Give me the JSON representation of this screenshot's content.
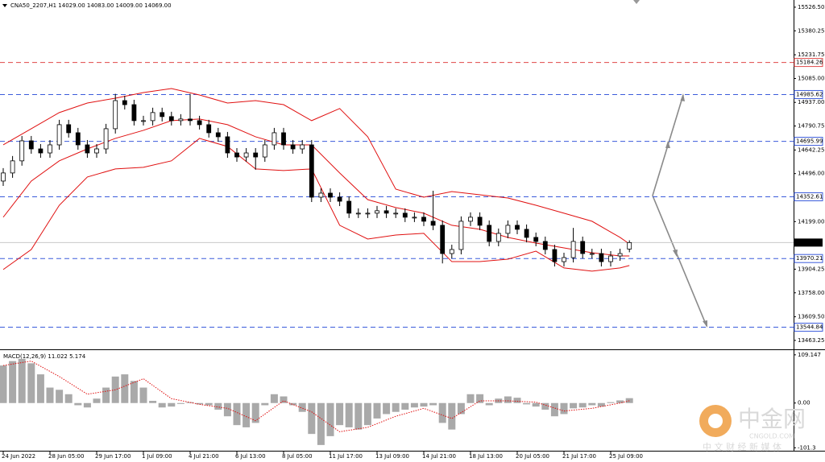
{
  "chart_data": {
    "type": "candlestick",
    "title": "CNA50_2207,H1  14029.00 14083.00 14009.00 14069.00",
    "categories": [
      "24 Jun 2022",
      null,
      null,
      null,
      null,
      "28 Jun 05:00",
      null,
      null,
      null,
      null,
      "29 Jun 17:00",
      null,
      null,
      null,
      null,
      "1 Jul 09:00",
      null,
      null,
      null,
      null,
      "4 Jul 21:00",
      null,
      null,
      null,
      null,
      "6 Jul 13:00",
      null,
      null,
      null,
      null,
      "8 Jul 05:00",
      null,
      null,
      null,
      null,
      "11 Jul 17:00",
      null,
      null,
      null,
      null,
      "13 Jul 09:00",
      null,
      null,
      null,
      null,
      "14 Jul 21:00",
      null,
      null,
      null,
      null,
      "18 Jul 13:00",
      null,
      null,
      null,
      null,
      "20 Jul 05:00",
      null,
      null,
      null,
      null,
      "21 Jul 17:00",
      null,
      null,
      null,
      null,
      "25 Jul 09:00",
      null,
      null
    ],
    "open": [
      14450,
      14500,
      14575,
      14699,
      14649,
      14624,
      14674,
      14799,
      14749,
      14674,
      14624,
      14649,
      14774,
      14948,
      14923,
      14824,
      14824,
      14874,
      14849,
      14824,
      14834,
      14824,
      14799,
      14749,
      14724,
      14624,
      14599,
      14624,
      14599,
      14674,
      14749,
      14674,
      14649,
      14674,
      14350,
      14375,
      14350,
      14325,
      14251,
      14251,
      14251,
      14266,
      14251,
      14251,
      14226,
      14226,
      14201,
      14176,
      14001,
      14026,
      14201,
      14226,
      14176,
      14076,
      14126,
      14176,
      14151,
      14101,
      14076,
      14026,
      13951,
      13976,
      14076,
      14001,
      14001,
      13951,
      13986,
      14029
    ],
    "high": [
      14530,
      14605,
      14729,
      14729,
      14679,
      14704,
      14829,
      14829,
      14779,
      14704,
      14679,
      14804,
      14990,
      14978,
      14953,
      14854,
      14904,
      14904,
      14879,
      14864,
      14990,
      14854,
      14829,
      14779,
      14754,
      14654,
      14654,
      14654,
      14704,
      14779,
      14779,
      14704,
      14704,
      14704,
      14405,
      14405,
      14380,
      14355,
      14281,
      14281,
      14296,
      14296,
      14281,
      14281,
      14256,
      14256,
      14390,
      14206,
      14056,
      14231,
      14256,
      14256,
      14206,
      14156,
      14206,
      14206,
      14181,
      14131,
      14106,
      14056,
      14006,
      14160,
      14106,
      14031,
      14031,
      14016,
      14031,
      14083
    ],
    "low": [
      14420,
      14470,
      14545,
      14619,
      14594,
      14594,
      14644,
      14719,
      14644,
      14594,
      14594,
      14619,
      14744,
      14893,
      14794,
      14794,
      14794,
      14819,
      14794,
      14794,
      14794,
      14769,
      14719,
      14694,
      14594,
      14569,
      14569,
      14520,
      14569,
      14644,
      14644,
      14619,
      14619,
      14320,
      14320,
      14320,
      14295,
      14221,
      14221,
      14221,
      14221,
      14221,
      14221,
      14196,
      14196,
      14171,
      14146,
      13940,
      13971,
      13996,
      14171,
      14146,
      14046,
      14046,
      14096,
      14121,
      14071,
      14046,
      13996,
      13921,
      13921,
      13946,
      13971,
      13971,
      13921,
      13921,
      13956,
      14009
    ],
    "close": [
      14500,
      14575,
      14699,
      14649,
      14624,
      14674,
      14799,
      14749,
      14674,
      14624,
      14649,
      14774,
      14948,
      14923,
      14824,
      14824,
      14874,
      14849,
      14824,
      14834,
      14824,
      14799,
      14749,
      14724,
      14624,
      14599,
      14624,
      14599,
      14674,
      14749,
      14674,
      14649,
      14674,
      14350,
      14375,
      14350,
      14325,
      14251,
      14251,
      14251,
      14266,
      14251,
      14251,
      14226,
      14226,
      14201,
      14176,
      14001,
      14026,
      14201,
      14226,
      14176,
      14076,
      14126,
      14176,
      14151,
      14101,
      14076,
      14026,
      13951,
      13976,
      14076,
      14001,
      14001,
      13951,
      13986,
      14001,
      14069
    ],
    "colors": {
      "up": "#ffffff",
      "down": "#000000",
      "band": "#e01010",
      "histogram": "#8c8c8c",
      "signal": "#e01010"
    },
    "bands": {
      "x": [
        0,
        3,
        6,
        9,
        12,
        15,
        18,
        21,
        24,
        27,
        30,
        33,
        36,
        39,
        42,
        45,
        48,
        51,
        54,
        57,
        60,
        63,
        66,
        67
      ],
      "upper": [
        14674,
        14774,
        14874,
        14933,
        14963,
        14998,
        15023,
        14983,
        14933,
        14948,
        14923,
        14824,
        14899,
        14724,
        14400,
        14350,
        14385,
        14365,
        14345,
        14300,
        14251,
        14201,
        14101,
        14061
      ],
      "middle": [
        14226,
        14450,
        14575,
        14649,
        14714,
        14764,
        14824,
        14834,
        14799,
        14724,
        14674,
        14674,
        14500,
        14335,
        14286,
        14251,
        14176,
        14151,
        14101,
        14066,
        14036,
        14006,
        13986,
        13986
      ],
      "lower": [
        13902,
        14026,
        14300,
        14475,
        14525,
        14535,
        14575,
        14714,
        14664,
        14525,
        14515,
        14525,
        14176,
        14091,
        14116,
        14126,
        13951,
        13951,
        13966,
        14016,
        13912,
        13892,
        13912,
        13927
      ]
    },
    "ylim": [
      13418,
      15561
    ],
    "yticks": [
      {
        "value": 15526.5,
        "label": "15526.50"
      },
      {
        "value": 15380.25,
        "label": "15380.25"
      },
      {
        "value": 15231.75,
        "label": "15231.75"
      },
      {
        "value": 15085,
        "label": "15085.00"
      },
      {
        "value": 14937,
        "label": "14937.00"
      },
      {
        "value": 14790.75,
        "label": "14790.75"
      },
      {
        "value": 14642.25,
        "label": "14642.25"
      },
      {
        "value": 14496,
        "label": "14496.00"
      },
      {
        "value": 14199,
        "label": "14199.00"
      },
      {
        "value": 13904.25,
        "label": "13904.25"
      },
      {
        "value": 13758,
        "label": "13758.00"
      },
      {
        "value": 13609.5,
        "label": "13609.50"
      },
      {
        "value": 13463.25,
        "label": "13463.25"
      }
    ],
    "levels": [
      {
        "value": 15184.26,
        "color": "#e04848"
      },
      {
        "value": 14985.62,
        "color": "#3b5bdb"
      },
      {
        "value": 14695.99,
        "color": "#3b5bdb"
      },
      {
        "value": 14352.61,
        "color": "#3b5bdb"
      },
      {
        "value": 13970.21,
        "color": "#3b5bdb"
      },
      {
        "value": 13544.84,
        "color": "#3b5bdb"
      }
    ],
    "last": {
      "value": 14069,
      "label": "14069.00"
    },
    "macd": {
      "label": "MACD(12,26,9) 11.022 5.174",
      "ylim": [
        -108,
        118
      ],
      "yticks": [
        109.147,
        {
          "value": 0,
          "label": "0.00"
        },
        -101.3
      ],
      "histogram": [
        85,
        95,
        100,
        90,
        65,
        35,
        30,
        20,
        -5,
        -10,
        10,
        35,
        60,
        65,
        50,
        35,
        5,
        -10,
        -8,
        -2,
        2,
        -3,
        -5,
        -15,
        -30,
        -50,
        -55,
        -45,
        -5,
        20,
        15,
        -5,
        -20,
        -70,
        -95,
        -75,
        -50,
        -55,
        -60,
        -50,
        -35,
        -25,
        -20,
        -15,
        -10,
        -8,
        -5,
        -45,
        -60,
        -25,
        20,
        20,
        -5,
        10,
        15,
        12,
        -3,
        -8,
        -15,
        -30,
        -25,
        -12,
        -10,
        -5,
        -8,
        2,
        6,
        11.022
      ],
      "signal_x": [
        0,
        3,
        6,
        9,
        12,
        15,
        18,
        21,
        24,
        27,
        30,
        33,
        36,
        39,
        42,
        45,
        48,
        51,
        54,
        57,
        60,
        63,
        66,
        67
      ],
      "signal": [
        85,
        95,
        60,
        20,
        30,
        55,
        10,
        -3,
        -12,
        -40,
        5,
        -20,
        -65,
        -55,
        -30,
        -12,
        -35,
        5,
        5,
        2,
        -18,
        -12,
        0,
        5.174
      ]
    },
    "watermark": {
      "name": "中金网",
      "site": "CNGOLD.COM",
      "slogan": "中 文 财 经 新 媒 体"
    }
  }
}
